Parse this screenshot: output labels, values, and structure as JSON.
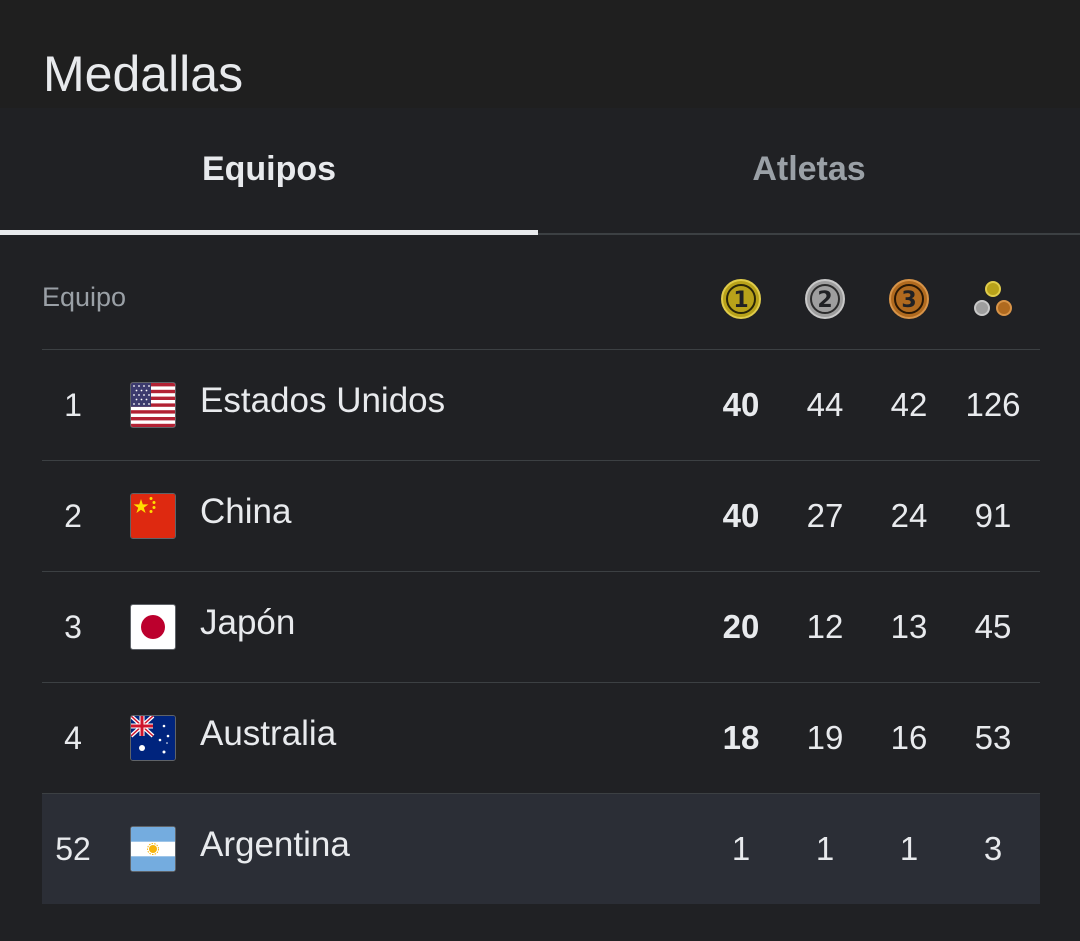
{
  "page": {
    "title": "Medallas"
  },
  "tabs": [
    {
      "label": "Equipos",
      "active": true
    },
    {
      "label": "Atletas",
      "active": false
    }
  ],
  "table": {
    "header_label": "Equipo",
    "medal_icons": [
      {
        "name": "gold-medal-icon",
        "number": "1",
        "color": "#b8a21a"
      },
      {
        "name": "silver-medal-icon",
        "number": "2",
        "color": "#9e9e9e"
      },
      {
        "name": "bronze-medal-icon",
        "number": "3",
        "color": "#b06a1f"
      },
      {
        "name": "total-medals-icon"
      }
    ],
    "rows": [
      {
        "rank": "1",
        "team": "Estados Unidos",
        "flag": "usa-flag-icon",
        "gold": "40",
        "silver": "44",
        "bronze": "42",
        "total": "126"
      },
      {
        "rank": "2",
        "team": "China",
        "flag": "china-flag-icon",
        "gold": "40",
        "silver": "27",
        "bronze": "24",
        "total": "91"
      },
      {
        "rank": "3",
        "team": "Japón",
        "flag": "japan-flag-icon",
        "gold": "20",
        "silver": "12",
        "bronze": "13",
        "total": "45"
      },
      {
        "rank": "4",
        "team": "Australia",
        "flag": "australia-flag-icon",
        "gold": "18",
        "silver": "19",
        "bronze": "16",
        "total": "53"
      },
      {
        "rank": "52",
        "team": "Argentina",
        "flag": "argentina-flag-icon",
        "gold": "1",
        "silver": "1",
        "bronze": "1",
        "total": "3",
        "highlighted": true
      }
    ]
  },
  "colors": {
    "background": "#202124",
    "title_bar": "#1f1f1f",
    "highlight_row": "#2b2e36",
    "divider": "#3c4043",
    "text_primary": "#e8eaed",
    "text_secondary": "#9aa0a6",
    "gold": "#b8a21a",
    "silver": "#9e9e9e",
    "bronze": "#b06a1f"
  }
}
